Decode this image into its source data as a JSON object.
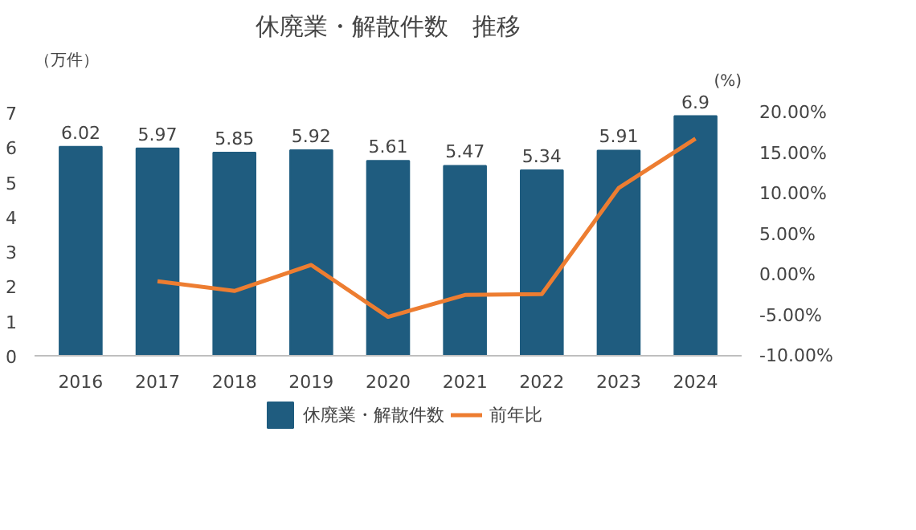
{
  "chart_data": {
    "type": "bar",
    "title": "休廃業・解散件数　推移",
    "ylabel": "（万件）",
    "y2label": "(%)",
    "categories": [
      "2016",
      "2017",
      "2018",
      "2019",
      "2020",
      "2021",
      "2022",
      "2023",
      "2024"
    ],
    "series": [
      {
        "name": "休廃業・解散件数",
        "color": "#1f5c7f",
        "values": [
          6.02,
          5.97,
          5.85,
          5.92,
          5.61,
          5.47,
          5.34,
          5.91,
          6.9
        ],
        "value_labels": [
          "6.02",
          "5.97",
          "5.85",
          "5.92",
          "5.61",
          "5.47",
          "5.34",
          "5.91",
          "6.9"
        ]
      },
      {
        "name": "前年比",
        "type": "line",
        "axis": "y2",
        "color": "#ed7d31",
        "values": [
          null,
          -0.8,
          -2.0,
          1.2,
          -5.2,
          -2.5,
          -2.4,
          10.7,
          16.8
        ]
      }
    ],
    "ylim": [
      0,
      7
    ],
    "yticks": [
      0,
      1,
      2,
      3,
      4,
      5,
      6,
      7
    ],
    "y2lim": [
      -10,
      20
    ],
    "y2ticks": [
      {
        "value": -10,
        "label": "-10.00%"
      },
      {
        "value": -5,
        "label": "-5.00%"
      },
      {
        "value": 0,
        "label": "0.00%"
      },
      {
        "value": 5,
        "label": "5.00%"
      },
      {
        "value": 10,
        "label": "10.00%"
      },
      {
        "value": 15,
        "label": "15.00%"
      },
      {
        "value": 20,
        "label": "20.00%"
      }
    ],
    "grid": false,
    "legend": "bottom",
    "marker": "none",
    "line_style": "solid"
  }
}
